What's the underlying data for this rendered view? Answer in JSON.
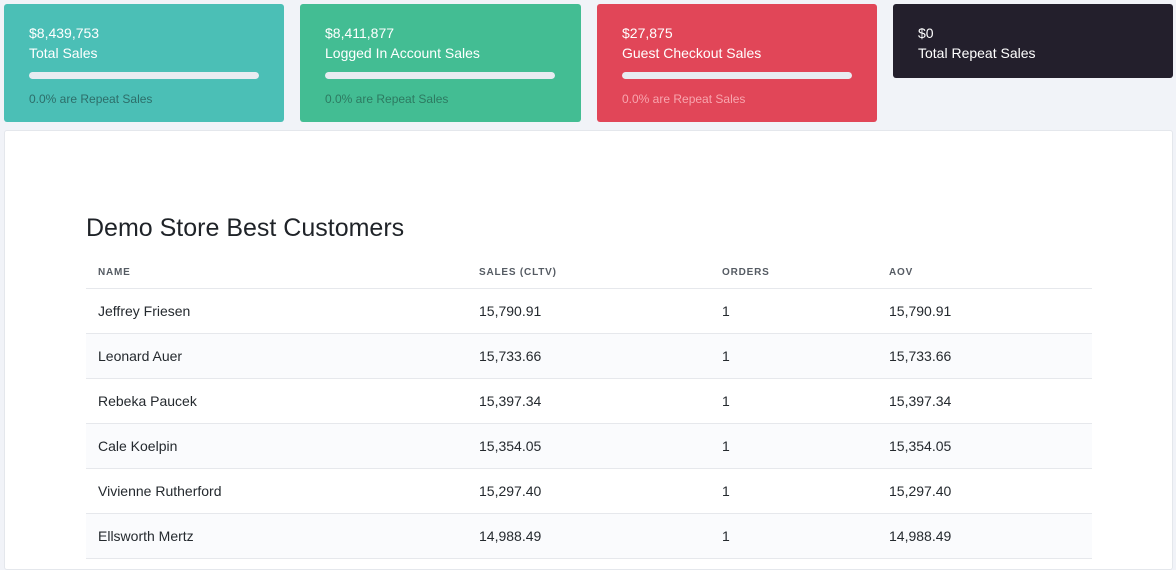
{
  "cards": [
    {
      "value": "$8,439,753",
      "label": "Total Sales",
      "progress": 0.0,
      "note": "0.0% are Repeat Sales"
    },
    {
      "value": "$8,411,877",
      "label": "Logged In Account Sales",
      "progress": 0.0,
      "note": "0.0% are Repeat Sales"
    },
    {
      "value": "$27,875",
      "label": "Guest Checkout Sales",
      "progress": 0.0,
      "note": "0.0% are Repeat Sales"
    },
    {
      "value": "$0",
      "label": "Total Repeat Sales"
    }
  ],
  "colors": {
    "teal": "#4bbfb6",
    "green": "#43bd93",
    "red": "#e14658",
    "dark": "#231f2c"
  },
  "panel": {
    "title": "Demo Store Best Customers",
    "columns": [
      "NAME",
      "SALES (CLTV)",
      "ORDERS",
      "AOV"
    ],
    "rows": [
      [
        "Jeffrey Friesen",
        "15,790.91",
        "1",
        "15,790.91"
      ],
      [
        "Leonard Auer",
        "15,733.66",
        "1",
        "15,733.66"
      ],
      [
        "Rebeka Paucek",
        "15,397.34",
        "1",
        "15,397.34"
      ],
      [
        "Cale Koelpin",
        "15,354.05",
        "1",
        "15,354.05"
      ],
      [
        "Vivienne Rutherford",
        "15,297.40",
        "1",
        "15,297.40"
      ],
      [
        "Ellsworth Mertz",
        "14,988.49",
        "1",
        "14,988.49"
      ]
    ]
  }
}
